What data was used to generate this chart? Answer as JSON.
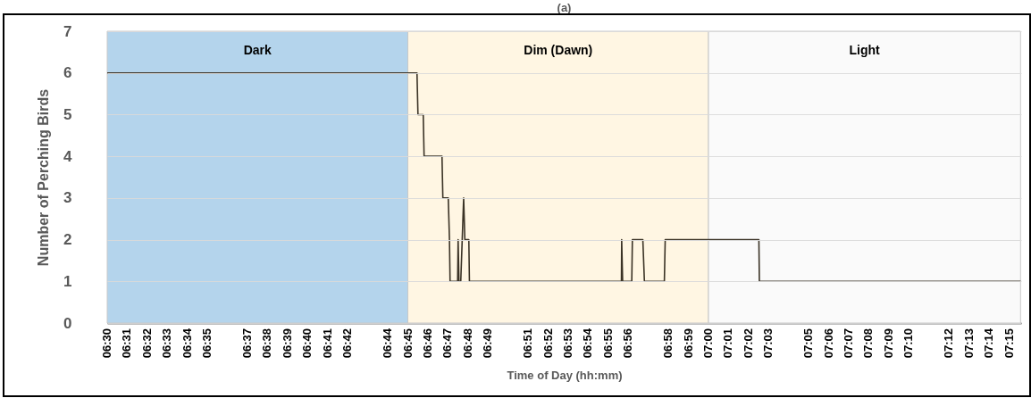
{
  "chart_data": {
    "type": "line",
    "title": "(a)",
    "xlabel": "Time of Day (hh:mm)",
    "ylabel": "Number of Perching Birds",
    "x": [
      6.5,
      6.7576,
      6.7584,
      6.7628,
      6.7635,
      6.7784,
      6.7791,
      6.7836,
      6.7846,
      6.7851,
      6.7914,
      6.7918,
      6.7925,
      6.794,
      6.7964,
      6.7974,
      6.8007,
      6.8012,
      6.9276,
      6.9278,
      6.9286,
      6.9362,
      6.9367,
      6.9454,
      6.9467,
      6.9633,
      6.964,
      7.0419,
      7.0423,
      7.2595
    ],
    "series": [
      {
        "color": "#3b3326",
        "values": [
          6,
          6,
          5,
          5,
          4,
          4,
          3,
          3,
          2,
          1,
          1,
          2,
          1,
          1,
          3,
          2,
          2,
          1,
          1,
          2,
          1,
          1,
          2,
          2,
          1,
          1,
          2,
          2,
          1,
          1
        ]
      }
    ],
    "xlim": [
      6.5,
      7.26
    ],
    "xticks": [
      {
        "value": 6.5,
        "label": "06:30"
      },
      {
        "value": 6.516667,
        "label": "06:31"
      },
      {
        "value": 6.533333,
        "label": "06:32"
      },
      {
        "value": 6.55,
        "label": "06:33"
      },
      {
        "value": 6.566667,
        "label": "06:34"
      },
      {
        "value": 6.583333,
        "label": "06:35"
      },
      {
        "value": 6.616667,
        "label": "06:37"
      },
      {
        "value": 6.633333,
        "label": "06:38"
      },
      {
        "value": 6.65,
        "label": "06:39"
      },
      {
        "value": 6.666667,
        "label": "06:40"
      },
      {
        "value": 6.683333,
        "label": "06:41"
      },
      {
        "value": 6.7,
        "label": "06:42"
      },
      {
        "value": 6.733333,
        "label": "06:44"
      },
      {
        "value": 6.75,
        "label": "06:45"
      },
      {
        "value": 6.766667,
        "label": "06:46"
      },
      {
        "value": 6.783333,
        "label": "06:47"
      },
      {
        "value": 6.8,
        "label": "06:48"
      },
      {
        "value": 6.816667,
        "label": "06:49"
      },
      {
        "value": 6.85,
        "label": "06:51"
      },
      {
        "value": 6.866667,
        "label": "06:52"
      },
      {
        "value": 6.883333,
        "label": "06:53"
      },
      {
        "value": 6.9,
        "label": "06:54"
      },
      {
        "value": 6.916667,
        "label": "06:55"
      },
      {
        "value": 6.933333,
        "label": "06:56"
      },
      {
        "value": 6.966667,
        "label": "06:58"
      },
      {
        "value": 6.983333,
        "label": "06:59"
      },
      {
        "value": 7.0,
        "label": "07:00"
      },
      {
        "value": 7.016667,
        "label": "07:01"
      },
      {
        "value": 7.033333,
        "label": "07:02"
      },
      {
        "value": 7.05,
        "label": "07:03"
      },
      {
        "value": 7.083333,
        "label": "07:05"
      },
      {
        "value": 7.1,
        "label": "07:06"
      },
      {
        "value": 7.116667,
        "label": "07:07"
      },
      {
        "value": 7.133333,
        "label": "07:08"
      },
      {
        "value": 7.15,
        "label": "07:09"
      },
      {
        "value": 7.166667,
        "label": "07:10"
      },
      {
        "value": 7.2,
        "label": "07:12"
      },
      {
        "value": 7.216667,
        "label": "07:13"
      },
      {
        "value": 7.233333,
        "label": "07:14"
      },
      {
        "value": 7.25,
        "label": "07:15"
      }
    ],
    "ylim": [
      0,
      7
    ],
    "yticks": [
      0,
      1,
      2,
      3,
      4,
      5,
      6,
      7
    ],
    "grid": "y",
    "bands": [
      {
        "axis": "x",
        "from": 6.5,
        "to": 6.75,
        "label": "Dark",
        "color": "#b4d4ec"
      },
      {
        "axis": "x",
        "from": 6.75,
        "to": 7.0,
        "label": "Dim (Dawn)",
        "color": "#fff6e3"
      },
      {
        "axis": "x",
        "from": 7.0,
        "to": 7.2595,
        "label": "Light",
        "color": "#fafafa"
      }
    ]
  }
}
